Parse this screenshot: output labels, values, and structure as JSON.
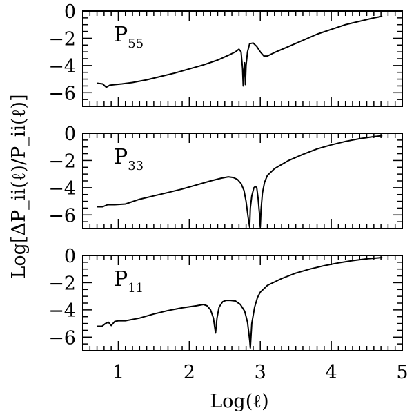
{
  "chart_data": {
    "type": "line",
    "xlabel": "Log(ℓ)",
    "ylabel": "Log[ΔP_ii(ℓ)/P_ii(ℓ)]",
    "xlim": [
      0.5,
      5
    ],
    "x_ticks": [
      "1",
      "2",
      "3",
      "4",
      "5"
    ],
    "ylim": [
      -7,
      0
    ],
    "y_ticks": [
      "0",
      "−2",
      "−4",
      "−6"
    ],
    "panels": [
      {
        "label_main": "P",
        "label_sub": "55",
        "series": [
          {
            "name": "P55",
            "points": [
              [
                0.7,
                -5.3
              ],
              [
                0.78,
                -5.35
              ],
              [
                0.83,
                -5.6
              ],
              [
                0.88,
                -5.45
              ],
              [
                0.95,
                -5.4
              ],
              [
                1.05,
                -5.35
              ],
              [
                1.2,
                -5.25
              ],
              [
                1.4,
                -5.05
              ],
              [
                1.6,
                -4.8
              ],
              [
                1.8,
                -4.55
              ],
              [
                2.0,
                -4.25
              ],
              [
                2.2,
                -3.95
              ],
              [
                2.4,
                -3.6
              ],
              [
                2.55,
                -3.25
              ],
              [
                2.65,
                -3.0
              ],
              [
                2.7,
                -2.8
              ],
              [
                2.73,
                -3.0
              ],
              [
                2.75,
                -4.2
              ],
              [
                2.76,
                -5.5
              ],
              [
                2.77,
                -4.3
              ],
              [
                2.78,
                -3.8
              ],
              [
                2.79,
                -5.4
              ],
              [
                2.8,
                -4.0
              ],
              [
                2.82,
                -3.0
              ],
              [
                2.85,
                -2.4
              ],
              [
                2.9,
                -2.35
              ],
              [
                2.95,
                -2.6
              ],
              [
                3.0,
                -3.0
              ],
              [
                3.05,
                -3.3
              ],
              [
                3.1,
                -3.3
              ],
              [
                3.2,
                -3.05
              ],
              [
                3.4,
                -2.6
              ],
              [
                3.6,
                -2.15
              ],
              [
                3.8,
                -1.7
              ],
              [
                4.0,
                -1.35
              ],
              [
                4.2,
                -1.0
              ],
              [
                4.4,
                -0.75
              ],
              [
                4.6,
                -0.5
              ],
              [
                4.72,
                -0.38
              ]
            ]
          }
        ]
      },
      {
        "label_main": "P",
        "label_sub": "33",
        "series": [
          {
            "name": "P33",
            "points": [
              [
                0.7,
                -5.4
              ],
              [
                0.78,
                -5.4
              ],
              [
                0.85,
                -5.25
              ],
              [
                0.95,
                -5.25
              ],
              [
                1.1,
                -5.2
              ],
              [
                1.3,
                -4.85
              ],
              [
                1.5,
                -4.6
              ],
              [
                1.7,
                -4.35
              ],
              [
                1.9,
                -4.1
              ],
              [
                2.1,
                -3.8
              ],
              [
                2.3,
                -3.5
              ],
              [
                2.45,
                -3.3
              ],
              [
                2.55,
                -3.2
              ],
              [
                2.62,
                -3.25
              ],
              [
                2.68,
                -3.4
              ],
              [
                2.73,
                -3.7
              ],
              [
                2.77,
                -4.2
              ],
              [
                2.8,
                -5.0
              ],
              [
                2.83,
                -6.2
              ],
              [
                2.85,
                -6.9
              ],
              [
                2.86,
                -5.5
              ],
              [
                2.88,
                -4.6
              ],
              [
                2.91,
                -4.0
              ],
              [
                2.93,
                -3.9
              ],
              [
                2.95,
                -4.0
              ],
              [
                2.97,
                -4.8
              ],
              [
                2.99,
                -6.0
              ],
              [
                3.0,
                -6.9
              ],
              [
                3.01,
                -5.6
              ],
              [
                3.03,
                -4.4
              ],
              [
                3.06,
                -3.6
              ],
              [
                3.1,
                -3.1
              ],
              [
                3.2,
                -2.6
              ],
              [
                3.4,
                -2.0
              ],
              [
                3.6,
                -1.55
              ],
              [
                3.8,
                -1.15
              ],
              [
                4.0,
                -0.85
              ],
              [
                4.2,
                -0.6
              ],
              [
                4.4,
                -0.4
              ],
              [
                4.6,
                -0.25
              ],
              [
                4.72,
                -0.18
              ]
            ]
          }
        ]
      },
      {
        "label_main": "P",
        "label_sub": "11",
        "series": [
          {
            "name": "P11",
            "points": [
              [
                0.7,
                -5.2
              ],
              [
                0.77,
                -5.2
              ],
              [
                0.82,
                -5.0
              ],
              [
                0.86,
                -4.9
              ],
              [
                0.9,
                -5.15
              ],
              [
                0.95,
                -4.85
              ],
              [
                1.0,
                -4.8
              ],
              [
                1.1,
                -4.8
              ],
              [
                1.3,
                -4.6
              ],
              [
                1.5,
                -4.3
              ],
              [
                1.7,
                -4.05
              ],
              [
                1.9,
                -3.85
              ],
              [
                2.1,
                -3.7
              ],
              [
                2.2,
                -3.6
              ],
              [
                2.25,
                -3.7
              ],
              [
                2.3,
                -4.0
              ],
              [
                2.34,
                -4.6
              ],
              [
                2.37,
                -5.7
              ],
              [
                2.39,
                -4.6
              ],
              [
                2.42,
                -3.8
              ],
              [
                2.47,
                -3.4
              ],
              [
                2.52,
                -3.3
              ],
              [
                2.58,
                -3.3
              ],
              [
                2.65,
                -3.35
              ],
              [
                2.72,
                -3.6
              ],
              [
                2.78,
                -4.1
              ],
              [
                2.82,
                -4.9
              ],
              [
                2.85,
                -6.2
              ],
              [
                2.86,
                -6.8
              ],
              [
                2.88,
                -5.0
              ],
              [
                2.92,
                -3.8
              ],
              [
                2.96,
                -3.1
              ],
              [
                3.0,
                -2.7
              ],
              [
                3.1,
                -2.2
              ],
              [
                3.3,
                -1.7
              ],
              [
                3.5,
                -1.3
              ],
              [
                3.7,
                -1.0
              ],
              [
                3.9,
                -0.75
              ],
              [
                4.1,
                -0.55
              ],
              [
                4.3,
                -0.38
              ],
              [
                4.5,
                -0.25
              ],
              [
                4.72,
                -0.15
              ]
            ]
          }
        ]
      }
    ]
  }
}
